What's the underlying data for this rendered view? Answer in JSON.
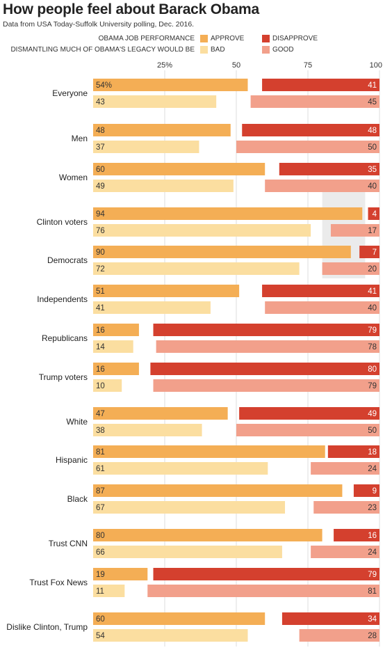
{
  "title": "How people feel about Barack Obama",
  "subtitle": "Data from USA Today-Suffolk University polling, Dec. 2016.",
  "legend": {
    "rows": [
      {
        "label": "OBAMA JOB PERFORMANCE",
        "items": [
          {
            "label": "APPROVE",
            "color": "#f4ae55"
          },
          {
            "label": "DISAPPROVE",
            "color": "#d4402e"
          }
        ]
      },
      {
        "label": "DISMANTLING MUCH OF OBAMA'S LEGACY WOULD BE",
        "items": [
          {
            "label": "BAD",
            "color": "#fbdea0"
          },
          {
            "label": "GOOD",
            "color": "#f2a08b"
          }
        ]
      }
    ]
  },
  "chart_data": {
    "type": "bar",
    "orientation": "horizontal",
    "xlim": [
      0,
      100
    ],
    "x_ticks": [
      "25%",
      "50",
      "75",
      "100"
    ],
    "x_tick_values": [
      25,
      50,
      75,
      100
    ],
    "grid": true,
    "legend_position": "top",
    "categories": [
      "Everyone",
      "Men",
      "Women",
      "Clinton voters",
      "Democrats",
      "Independents",
      "Republicans",
      "Trump voters",
      "White",
      "Hispanic",
      "Black",
      "Trust CNN",
      "Trust Fox News",
      "Dislike Clinton, Trump"
    ],
    "series": [
      {
        "name": "APPROVE",
        "color": "#f4ae55",
        "values": [
          54,
          48,
          60,
          94,
          90,
          51,
          16,
          16,
          47,
          81,
          87,
          80,
          19,
          60
        ],
        "labels": [
          "54%",
          "48",
          "60",
          "94",
          "90",
          "51",
          "16",
          "16",
          "47",
          "81",
          "87",
          "80",
          "19",
          "60"
        ]
      },
      {
        "name": "DISAPPROVE",
        "color": "#d4402e",
        "values": [
          41,
          48,
          35,
          4,
          7,
          41,
          79,
          80,
          49,
          18,
          9,
          16,
          79,
          34
        ]
      },
      {
        "name": "BAD",
        "color": "#fbdea0",
        "values": [
          43,
          37,
          49,
          76,
          72,
          41,
          14,
          10,
          38,
          61,
          67,
          66,
          11,
          54
        ]
      },
      {
        "name": "GOOD",
        "color": "#f2a08b",
        "values": [
          45,
          50,
          40,
          17,
          20,
          40,
          78,
          79,
          50,
          24,
          23,
          24,
          81,
          28
        ]
      }
    ],
    "highlight_range": [
      80,
      95
    ],
    "highlight_rows": [
      "Clinton voters",
      "Democrats"
    ],
    "highlight_color": "#ebebeb",
    "grid_color": "#dcdcdc"
  }
}
